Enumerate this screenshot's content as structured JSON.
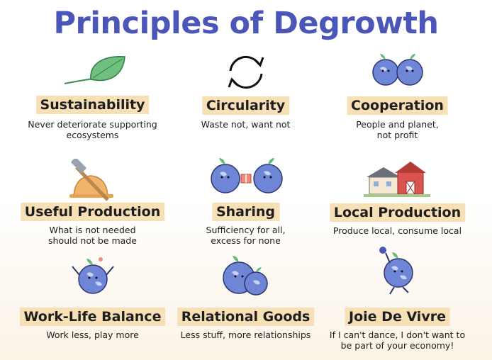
{
  "title": "Principles of Degrowth",
  "principles": [
    {
      "label": "Sustainability",
      "desc": "Never deteriorate supporting\necosystems"
    },
    {
      "label": "Circularity",
      "desc": "Waste not, want not"
    },
    {
      "label": "Cooperation",
      "desc": "People and planet,\nnot profit"
    },
    {
      "label": "Useful Production",
      "desc": "What is not needed\nshould not be made"
    },
    {
      "label": "Sharing",
      "desc": "Sufficiency for all,\nexcess for none"
    },
    {
      "label": "Local Production",
      "desc": "Produce local, consume local"
    },
    {
      "label": "Work-Life Balance",
      "desc": "Work less, play more"
    },
    {
      "label": "Relational Goods",
      "desc": "Less stuff, more relationships"
    },
    {
      "label": "Joie De Vivre",
      "desc": "If I can't dance, I don't want to\nbe part of your economy!"
    }
  ],
  "colors": {
    "title": "#4b57b8",
    "label_bg": "#f7dfb6",
    "planet": "#6f86d6",
    "leaf": "#5fbf7a"
  },
  "icons": [
    "leaf-icon",
    "recycle-arrows-icon",
    "two-planets-icon",
    "hammer-hardhat-icon",
    "planets-gift-icon",
    "farm-barn-icon",
    "planet-juggling-icon",
    "planets-hug-icon",
    "planet-dancing-icon"
  ]
}
